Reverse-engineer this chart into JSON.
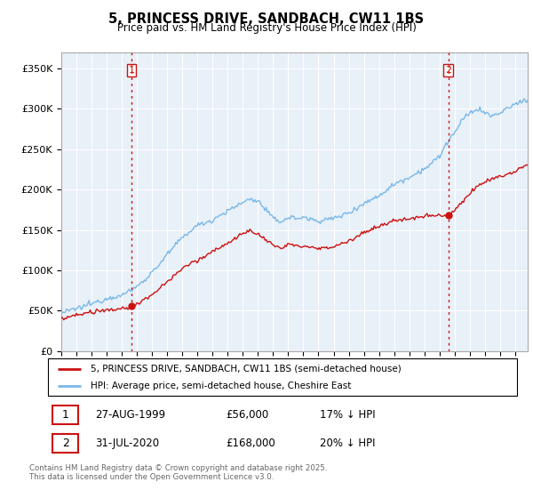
{
  "title": "5, PRINCESS DRIVE, SANDBACH, CW11 1BS",
  "subtitle": "Price paid vs. HM Land Registry's House Price Index (HPI)",
  "ytick_values": [
    0,
    50000,
    100000,
    150000,
    200000,
    250000,
    300000,
    350000
  ],
  "ylim": [
    0,
    370000
  ],
  "xlim_start": 1995.0,
  "xlim_end": 2025.83,
  "sale1_year": 1999.65,
  "sale1_price": 56000,
  "sale1_label": "1",
  "sale2_year": 2020.58,
  "sale2_price": 168000,
  "sale2_label": "2",
  "hpi_color": "#7ab8e8",
  "price_color": "#cc1111",
  "vline_color": "#cc1111",
  "background_color": "#ffffff",
  "grid_color": "#cccccc",
  "legend_label_price": "5, PRINCESS DRIVE, SANDBACH, CW11 1BS (semi-detached house)",
  "legend_label_hpi": "HPI: Average price, semi-detached house, Cheshire East",
  "table_row1": [
    "1",
    "27-AUG-1999",
    "£56,000",
    "17% ↓ HPI"
  ],
  "table_row2": [
    "2",
    "31-JUL-2020",
    "£168,000",
    "20% ↓ HPI"
  ],
  "footnote": "Contains HM Land Registry data © Crown copyright and database right 2025.\nThis data is licensed under the Open Government Licence v3.0.",
  "xtick_years": [
    1995,
    1996,
    1997,
    1998,
    1999,
    2000,
    2001,
    2002,
    2003,
    2004,
    2005,
    2006,
    2007,
    2008,
    2009,
    2010,
    2011,
    2012,
    2013,
    2014,
    2015,
    2016,
    2017,
    2018,
    2019,
    2020,
    2021,
    2022,
    2023,
    2024,
    2025
  ]
}
